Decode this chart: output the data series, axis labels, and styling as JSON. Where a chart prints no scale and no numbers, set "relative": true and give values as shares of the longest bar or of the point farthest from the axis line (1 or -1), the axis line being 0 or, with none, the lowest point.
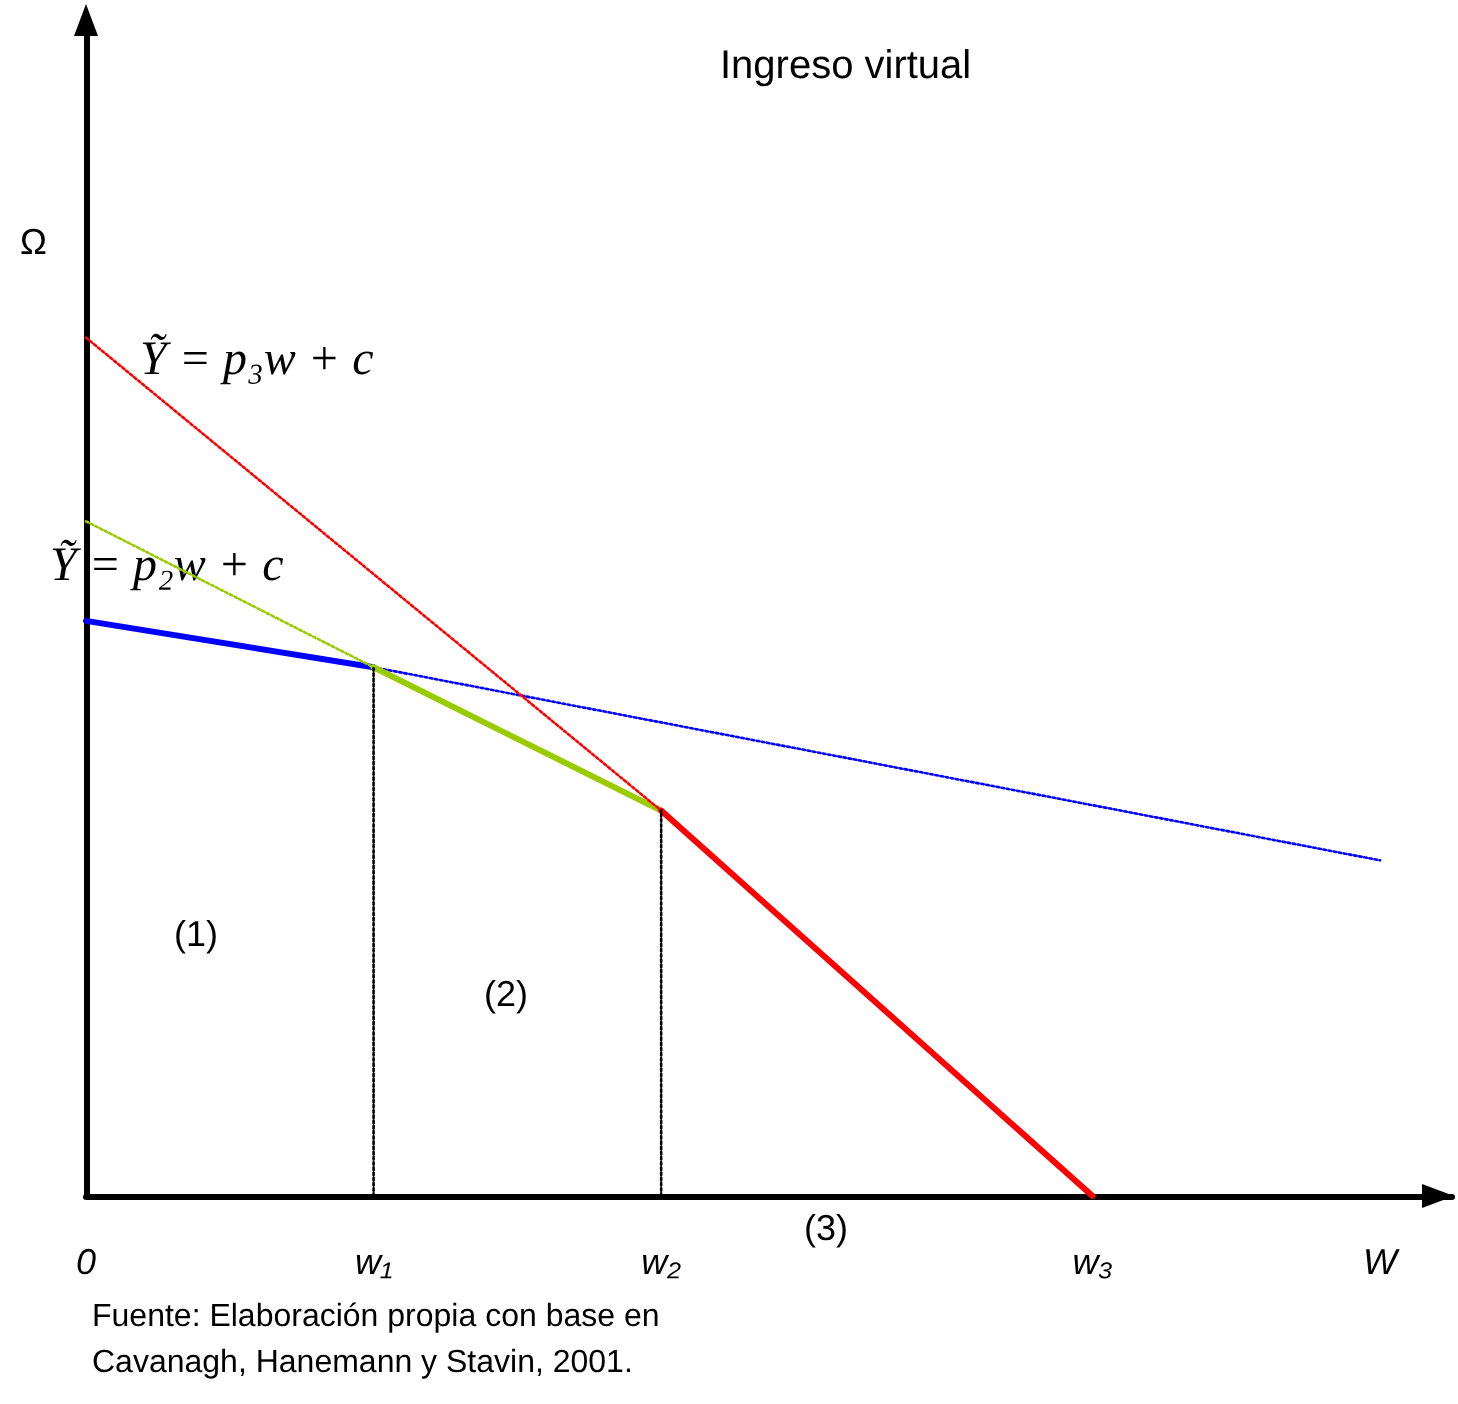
{
  "chart_data": {
    "type": "line",
    "title": "Ingreso virtual",
    "ylabel": "Ω",
    "relative": true,
    "grid": false,
    "marker": "none",
    "categories": [
      "0",
      null,
      null,
      null,
      "w₁",
      null,
      null,
      null,
      "w₂",
      null,
      null,
      null,
      null,
      null,
      "w₃",
      null,
      null,
      null,
      "W",
      null
    ],
    "series": [
      {
        "color": "#0000ff",
        "line_style": "solid",
        "x": [
          "0",
          "w₁"
        ],
        "values": [
          0.67,
          0.616
        ]
      },
      {
        "color": "#0000ff",
        "line_style": "dotted",
        "x": [
          "w₁",
          "W"
        ],
        "values": [
          0.616,
          0.391
        ]
      },
      {
        "color": "#99cc00",
        "line_style": "dotted",
        "x": [
          "0",
          "w₁"
        ],
        "values": [
          0.786,
          0.616
        ]
      },
      {
        "color": "#99cc00",
        "line_style": "solid",
        "x": [
          "w₁",
          "w₂"
        ],
        "values": [
          0.616,
          0.449
        ]
      },
      {
        "color": "#ff0000",
        "line_style": "dotted",
        "x": [
          "0",
          "w₂"
        ],
        "values": [
          1,
          0.449
        ]
      },
      {
        "color": "#ff0000",
        "line_style": "solid",
        "x": [
          "w₂",
          "w₃"
        ],
        "values": [
          0.449,
          0
        ]
      },
      {
        "color": "#000000",
        "line_style": "dotted",
        "x": [
          "w₁",
          "w₁"
        ],
        "values": [
          0,
          0.616
        ]
      },
      {
        "color": "#000000",
        "line_style": "dotted",
        "x": [
          "w₂",
          "w₂"
        ],
        "values": [
          0,
          0.449
        ]
      }
    ],
    "annotations": [
      "Ỹ = p₃w + c",
      "Ỹ = p₂w + c",
      "(1)",
      "(2)",
      "(3)",
      "Fuente: Elaboración propia con base en\nCavanagh, Hanemann y Stavin, 2001."
    ]
  }
}
